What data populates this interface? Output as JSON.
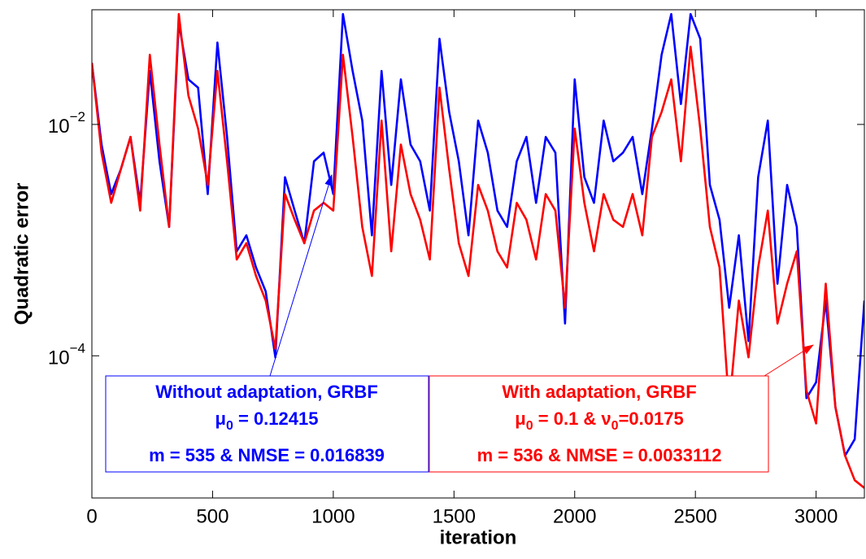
{
  "chart_data": {
    "type": "line",
    "x_label": "iteration",
    "y_label": "Quadratic error",
    "log_y": true,
    "grid": false,
    "xlim": [
      0,
      3200
    ],
    "ylim": [
      5.9e-06,
      0.098
    ],
    "xticks": [
      0,
      500,
      1000,
      1500,
      2000,
      2500,
      3000
    ],
    "yticks": [
      {
        "value": 0.0001,
        "label": "10−4"
      },
      {
        "value": 0.01,
        "label": "10−2"
      }
    ],
    "x": [
      0,
      40,
      80,
      120,
      160,
      200,
      240,
      280,
      320,
      360,
      400,
      440,
      480,
      520,
      560,
      600,
      640,
      680,
      720,
      760,
      800,
      840,
      880,
      920,
      960,
      1000,
      1040,
      1080,
      1120,
      1160,
      1200,
      1240,
      1280,
      1320,
      1360,
      1400,
      1440,
      1480,
      1520,
      1560,
      1600,
      1640,
      1680,
      1720,
      1760,
      1800,
      1840,
      1880,
      1920,
      1960,
      2000,
      2040,
      2080,
      2120,
      2160,
      2200,
      2240,
      2280,
      2320,
      2360,
      2400,
      2440,
      2480,
      2520,
      2560,
      2600,
      2640,
      2680,
      2720,
      2760,
      2800,
      2840,
      2880,
      2920,
      2960,
      3000,
      3040,
      3080,
      3120,
      3160,
      3200
    ],
    "series": [
      {
        "color": "#0000ff",
        "values": [
          0.034,
          0.0067,
          0.0025,
          0.0041,
          0.0078,
          0.0021,
          0.029,
          0.0048,
          0.0013,
          0.076,
          0.0245,
          0.0208,
          0.0025,
          0.051,
          0.0078,
          0.0008,
          0.0011,
          0.00058,
          0.00036,
          9.7e-05,
          0.0035,
          0.0018,
          0.00094,
          0.0048,
          0.0057,
          0.0025,
          0.09,
          0.029,
          0.0108,
          0.0011,
          0.029,
          0.003,
          0.0245,
          0.0067,
          0.0048,
          0.0018,
          0.055,
          0.0128,
          0.0048,
          0.0011,
          0.0108,
          0.0057,
          0.0018,
          0.0013,
          0.0048,
          0.0078,
          0.0021,
          0.0078,
          0.0057,
          0.00019,
          0.0245,
          0.0035,
          0.0021,
          0.0108,
          0.0048,
          0.0057,
          0.0078,
          0.0025,
          0.0092,
          0.04,
          0.09,
          0.015,
          0.09,
          0.055,
          0.003,
          0.0015,
          0.00026,
          0.0011,
          0.000134,
          0.0035,
          0.0108,
          0.00042,
          0.003,
          0.0013,
          4.3e-05,
          5.9e-05,
          0.0003,
          3.6e-05,
          1.37e-05,
          1.9e-05,
          0.0003
        ]
      },
      {
        "color": "#ff0000",
        "values": [
          0.034,
          0.0057,
          0.0021,
          0.0041,
          0.0078,
          0.0018,
          0.04,
          0.0067,
          0.0013,
          0.09,
          0.0177,
          0.0092,
          0.003,
          0.029,
          0.0048,
          0.00068,
          0.00094,
          0.00049,
          0.0003,
          0.000115,
          0.0025,
          0.0015,
          0.00094,
          0.0018,
          0.0021,
          0.0018,
          0.04,
          0.0078,
          0.0013,
          0.00049,
          0.0108,
          0.0008,
          0.0067,
          0.0025,
          0.0015,
          0.00068,
          0.0208,
          0.0041,
          0.00094,
          0.00049,
          0.003,
          0.0018,
          0.0008,
          0.00058,
          0.0021,
          0.0015,
          0.00068,
          0.0025,
          0.0018,
          0.00026,
          0.0092,
          0.0021,
          0.0008,
          0.0025,
          0.0015,
          0.0013,
          0.0025,
          0.0011,
          0.0078,
          0.0128,
          0.0245,
          0.0048,
          0.047,
          0.0092,
          0.0013,
          0.00058,
          3.6e-05,
          0.0003,
          9.7e-05,
          0.00058,
          0.0018,
          0.00019,
          0.00042,
          0.0008,
          5e-05,
          2.6e-05,
          0.00042,
          3.6e-05,
          1.37e-05,
          8.4e-06,
          7.2e-06
        ]
      }
    ],
    "annotations": [
      {
        "color": "#0000ff",
        "lines": [
          [
            "Without adaptation, GRBF"
          ],
          [
            "μ",
            "0",
            " = 0.12415"
          ],
          [
            "m = 535 & NMSE = 0.016839"
          ]
        ]
      },
      {
        "color": "#ff0000",
        "lines": [
          [
            "With adaptation, GRBF"
          ],
          [
            "μ",
            "0",
            " = 0.1 & ν",
            "0",
            "=0.0175"
          ],
          [
            "m = 536 & NMSE = 0.0033112"
          ]
        ]
      }
    ]
  }
}
